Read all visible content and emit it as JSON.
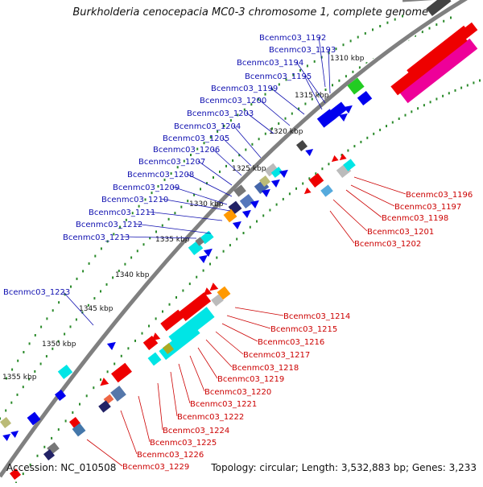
{
  "title": "Burkholderia cenocepacia MC0-3 chromosome 1, complete genome",
  "accession_text": "Accession: NC_010508",
  "topology_text": "Topology: circular; Length: 3,532,883 bp; Genes: 3,233",
  "colors": {
    "backbone": "#808080",
    "tick_green": "#2a8a2a",
    "forward_label": "#1010b0",
    "reverse_label": "#cc0000",
    "cds_blue": "#0000ee",
    "cds_red": "#ee0000",
    "cds_cyan": "#00e5e5",
    "cds_magenta": "#ee0099",
    "cds_green": "#22cc22"
  },
  "kbp_ticks": [
    "1310 kbp",
    "1315 kbp",
    "1320 kbp",
    "1325 kbp",
    "1330 kbp",
    "1335 kbp",
    "1340 kbp",
    "1345 kbp",
    "1350 kbp",
    "1355 kbp"
  ],
  "forward_genes": [
    "Bcenmc03_1192",
    "Bcenmc03_1193",
    "Bcenmc03_1194",
    "Bcenmc03_1195",
    "Bcenmc03_1199",
    "Bcenmc03_1200",
    "Bcenmc03_1203",
    "Bcenmc03_1204",
    "Bcenmc03_1205",
    "Bcenmc03_1206",
    "Bcenmc03_1207",
    "Bcenmc03_1208",
    "Bcenmc03_1209",
    "Bcenmc03_1210",
    "Bcenmc03_1211",
    "Bcenmc03_1212",
    "Bcenmc03_1213",
    "Bcenmc03_1223"
  ],
  "reverse_genes": [
    "Bcenmc03_1196",
    "Bcenmc03_1197",
    "Bcenmc03_1198",
    "Bcenmc03_1201",
    "Bcenmc03_1202",
    "Bcenmc03_1214",
    "Bcenmc03_1215",
    "Bcenmc03_1216",
    "Bcenmc03_1217",
    "Bcenmc03_1218",
    "Bcenmc03_1219",
    "Bcenmc03_1220",
    "Bcenmc03_1221",
    "Bcenmc03_1222",
    "Bcenmc03_1224",
    "Bcenmc03_1225",
    "Bcenmc03_1226",
    "Bcenmc03_1229"
  ]
}
